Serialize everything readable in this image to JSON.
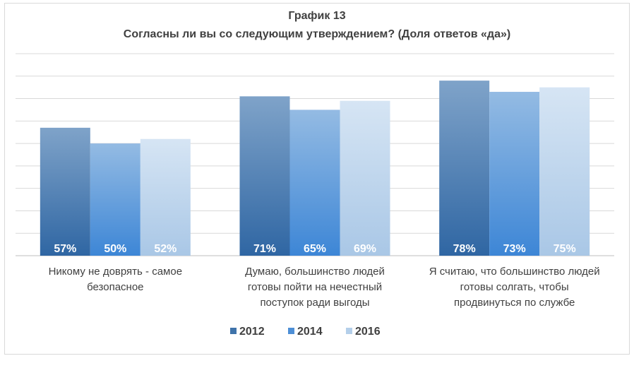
{
  "chart_data": {
    "type": "bar",
    "title": "График 13",
    "subtitle": "Согласны ли вы со следующим утверждением?  (Доля ответов «да»)",
    "categories": [
      [
        "Никому не доврять - самое",
        "безопасное"
      ],
      [
        "Думаю, большинство людей",
        "готовы пойти на нечестный",
        "поступок ради выгоды"
      ],
      [
        "Я считаю, что большинство людей",
        "готовы солгать, чтобы",
        "продвинуться по службе"
      ]
    ],
    "series": [
      {
        "name": "2012",
        "values": [
          57,
          71,
          78
        ],
        "labels": [
          "57%",
          "71%",
          "78%"
        ],
        "color": "#3f73aa"
      },
      {
        "name": "2014",
        "values": [
          50,
          65,
          73
        ],
        "labels": [
          "50%",
          "65%",
          "73%"
        ],
        "color": "#4d8fd6"
      },
      {
        "name": "2016",
        "values": [
          52,
          69,
          75
        ],
        "labels": [
          "52%",
          "69%",
          "75%"
        ],
        "color": "#b4cfea"
      }
    ],
    "ylim": [
      0,
      90
    ],
    "grid": true,
    "legend": "bottom"
  }
}
